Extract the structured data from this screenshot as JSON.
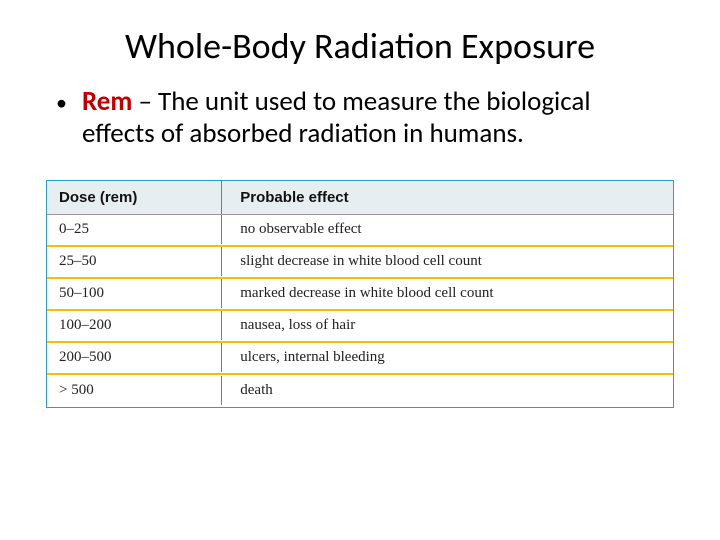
{
  "title": "Whole-Body Radiation Exposure",
  "bullet": {
    "dot": "•",
    "term": "Rem",
    "rest": " – The unit used to measure the biological effects of absorbed radiation in humans."
  },
  "table": {
    "border_color": "#2aa0c8",
    "header_bg": "#e6eef2",
    "row_underline": "#f2c200",
    "columns": [
      "Dose (rem)",
      "Probable effect"
    ],
    "rows": [
      [
        "0–25",
        "no observable effect"
      ],
      [
        "25–50",
        "slight decrease in white blood cell count"
      ],
      [
        "50–100",
        "marked decrease in white blood cell count"
      ],
      [
        "100–200",
        "nausea, loss of hair"
      ],
      [
        "200–500",
        "ulcers, internal bleeding"
      ],
      [
        "> 500",
        "death"
      ]
    ]
  }
}
